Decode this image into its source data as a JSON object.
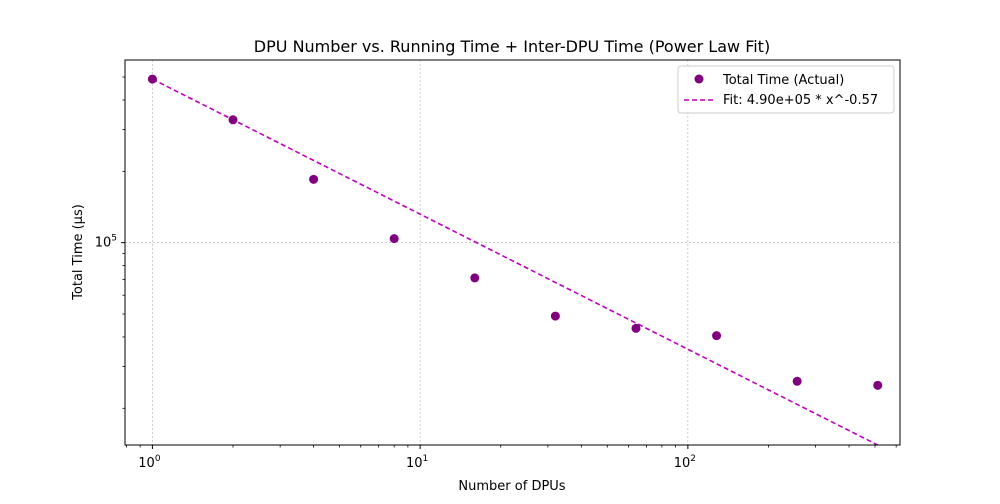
{
  "chart_data": {
    "type": "scatter",
    "title": "DPU Number vs. Running Time + Inter-DPU Time (Power Law Fit)",
    "xlabel": "Number of DPUs",
    "ylabel": "Total Time (µs)",
    "xscale": "log",
    "yscale": "log",
    "xlim": [
      0.79,
      620
    ],
    "ylim": [
      14000,
      590000
    ],
    "x_ticks": [
      {
        "value": 1,
        "base": "10",
        "exp": "0"
      },
      {
        "value": 10,
        "base": "10",
        "exp": "1"
      },
      {
        "value": 100,
        "base": "10",
        "exp": "2"
      }
    ],
    "y_ticks": [
      {
        "value": 100000,
        "base": "10",
        "exp": "5"
      }
    ],
    "grid": true,
    "legend_position": "top-right",
    "series": [
      {
        "name": "Total Time (Actual)",
        "kind": "scatter",
        "color": "#800080",
        "x": [
          1,
          2,
          4,
          8,
          16,
          32,
          64,
          128,
          256,
          512
        ],
        "y": [
          490000,
          330000,
          185000,
          104000,
          71000,
          49000,
          43500,
          40500,
          26000,
          25000
        ]
      },
      {
        "name": "Fit: 4.90e+05 * x^-0.57",
        "kind": "line",
        "style": "dashed",
        "color": "#bf00bf",
        "a": 490000,
        "b": -0.57,
        "x": [
          1,
          512
        ]
      }
    ]
  }
}
